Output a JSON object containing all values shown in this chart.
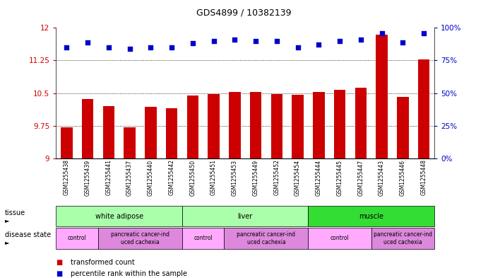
{
  "title": "GDS4899 / 10382139",
  "samples": [
    "GSM1255438",
    "GSM1255439",
    "GSM1255441",
    "GSM1255437",
    "GSM1255440",
    "GSM1255442",
    "GSM1255450",
    "GSM1255451",
    "GSM1255453",
    "GSM1255449",
    "GSM1255452",
    "GSM1255454",
    "GSM1255444",
    "GSM1255445",
    "GSM1255447",
    "GSM1255443",
    "GSM1255446",
    "GSM1255448"
  ],
  "bar_values": [
    9.72,
    10.37,
    10.2,
    9.72,
    10.18,
    10.16,
    10.45,
    10.48,
    10.53,
    10.52,
    10.48,
    10.47,
    10.53,
    10.58,
    10.62,
    11.85,
    10.42,
    11.28
  ],
  "percentile_values": [
    85,
    89,
    85,
    84,
    85,
    85,
    88,
    90,
    91,
    90,
    90,
    85,
    87,
    90,
    91,
    96,
    89,
    96
  ],
  "bar_color": "#cc0000",
  "percentile_color": "#0000cc",
  "ylim_left": [
    9.0,
    12.0
  ],
  "ylim_right": [
    0,
    100
  ],
  "yticks_left": [
    9.0,
    9.75,
    10.5,
    11.25,
    12.0
  ],
  "ytick_labels_left": [
    "9",
    "9.75",
    "10.5",
    "11.25",
    "12"
  ],
  "yticks_right": [
    0,
    25,
    50,
    75,
    100
  ],
  "ytick_labels_right": [
    "0%",
    "25%",
    "50%",
    "75%",
    "100%"
  ],
  "gridlines": [
    9.75,
    10.5,
    11.25
  ],
  "tissue_groups": [
    {
      "label": "white adipose",
      "start": 0,
      "end": 6,
      "color": "#aaffaa"
    },
    {
      "label": "liver",
      "start": 6,
      "end": 12,
      "color": "#aaffaa"
    },
    {
      "label": "muscle",
      "start": 12,
      "end": 18,
      "color": "#33dd33"
    }
  ],
  "disease_groups": [
    {
      "label": "control",
      "start": 0,
      "end": 2,
      "color": "#ffaaff"
    },
    {
      "label": "pancreatic cancer-ind\nuced cachexia",
      "start": 2,
      "end": 6,
      "color": "#dd88dd"
    },
    {
      "label": "control",
      "start": 6,
      "end": 8,
      "color": "#ffaaff"
    },
    {
      "label": "pancreatic cancer-ind\nuced cachexia",
      "start": 8,
      "end": 12,
      "color": "#dd88dd"
    },
    {
      "label": "control",
      "start": 12,
      "end": 15,
      "color": "#ffaaff"
    },
    {
      "label": "pancreatic cancer-ind\nuced cachexia",
      "start": 15,
      "end": 18,
      "color": "#dd88dd"
    }
  ],
  "legend_items": [
    {
      "label": "transformed count",
      "color": "#cc0000"
    },
    {
      "label": "percentile rank within the sample",
      "color": "#0000cc"
    }
  ],
  "row_labels": [
    "tissue",
    "disease state"
  ],
  "fig_width": 6.91,
  "fig_height": 3.93,
  "dpi": 100
}
